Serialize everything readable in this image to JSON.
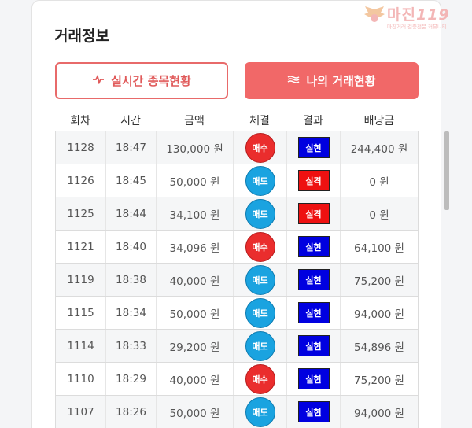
{
  "section_title": "거래정보",
  "buttons": {
    "realtime": {
      "label": "실시간 종목현황",
      "icon": "pulse-icon"
    },
    "mine": {
      "label": "나의 거래현황",
      "icon": "waves-icon"
    }
  },
  "table": {
    "headers": [
      "회차",
      "시간",
      "금액",
      "체결",
      "결과",
      "배당금"
    ],
    "rows": [
      {
        "round": "1128",
        "time": "18:47",
        "amount": "130,000 원",
        "side": "매수",
        "side_type": "sell",
        "result": "실현",
        "result_type": "win",
        "payout": "244,400 원"
      },
      {
        "round": "1126",
        "time": "18:45",
        "amount": "50,000 원",
        "side": "매도",
        "side_type": "buy",
        "result": "실격",
        "result_type": "lose",
        "payout": "0 원"
      },
      {
        "round": "1125",
        "time": "18:44",
        "amount": "34,100 원",
        "side": "매도",
        "side_type": "buy",
        "result": "실격",
        "result_type": "lose",
        "payout": "0 원"
      },
      {
        "round": "1121",
        "time": "18:40",
        "amount": "34,096 원",
        "side": "매수",
        "side_type": "sell",
        "result": "실현",
        "result_type": "win",
        "payout": "64,100 원"
      },
      {
        "round": "1119",
        "time": "18:38",
        "amount": "40,000 원",
        "side": "매도",
        "side_type": "buy",
        "result": "실현",
        "result_type": "win",
        "payout": "75,200 원"
      },
      {
        "round": "1115",
        "time": "18:34",
        "amount": "50,000 원",
        "side": "매도",
        "side_type": "buy",
        "result": "실현",
        "result_type": "win",
        "payout": "94,000 원"
      },
      {
        "round": "1114",
        "time": "18:33",
        "amount": "29,200 원",
        "side": "매도",
        "side_type": "buy",
        "result": "실현",
        "result_type": "win",
        "payout": "54,896 원"
      },
      {
        "round": "1110",
        "time": "18:29",
        "amount": "40,000 원",
        "side": "매수",
        "side_type": "sell",
        "result": "실현",
        "result_type": "win",
        "payout": "75,200 원"
      },
      {
        "round": "1107",
        "time": "18:26",
        "amount": "50,000 원",
        "side": "매도",
        "side_type": "buy",
        "result": "실현",
        "result_type": "win",
        "payout": "94,000 원"
      }
    ]
  },
  "watermark": {
    "name": "마진",
    "suffix": "119",
    "tagline": "마진거래 검증전문 커뮤니티",
    "emblem": "wings-emblem-icon"
  },
  "colors": {
    "accent": "#f16868",
    "sell": "#ea2d2d",
    "buy": "#1aa3e0",
    "win": "#0000e0",
    "lose": "#ee1111"
  }
}
